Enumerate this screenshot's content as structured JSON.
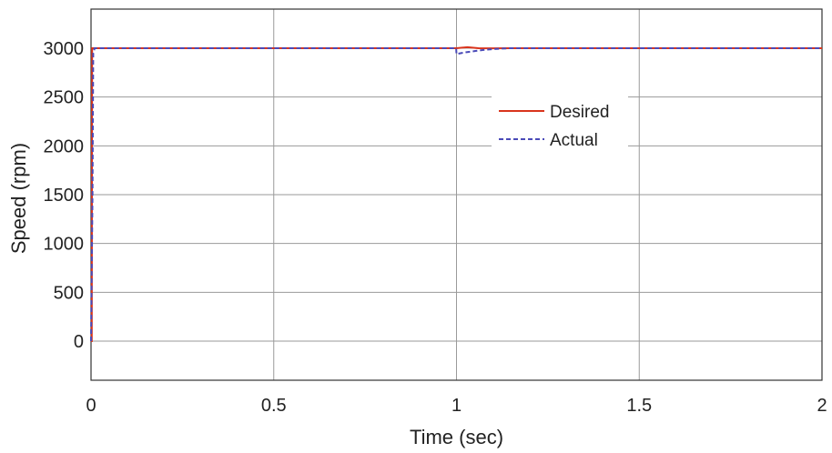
{
  "chart_data": {
    "type": "line",
    "title": "",
    "xlabel": "Time (sec)",
    "ylabel": "Speed (rpm)",
    "xlim": [
      0,
      2
    ],
    "ylim": [
      -400,
      3400
    ],
    "xticks": [
      0,
      0.5,
      1,
      1.5,
      2
    ],
    "yticks": [
      0,
      500,
      1000,
      1500,
      2000,
      2500,
      3000
    ],
    "xtick_labels": [
      "0",
      "0.5",
      "1",
      "1.5",
      "2"
    ],
    "ytick_labels": [
      "0",
      "500",
      "1000",
      "1500",
      "2000",
      "2500",
      "3000"
    ],
    "grid": true,
    "legend_position": "upper-center-right",
    "series": [
      {
        "name": "Desired",
        "color": "#d9341c",
        "line_style": "solid",
        "x": [
          0,
          0.002,
          0.003,
          1.0,
          1.03,
          1.06,
          1.1,
          1.15,
          2.0
        ],
        "y": [
          0,
          0,
          3000,
          3000,
          3010,
          3000,
          2998,
          3000,
          3000
        ]
      },
      {
        "name": "Actual",
        "color": "#4a4ab8",
        "line_style": "dashed",
        "x": [
          0,
          0.004,
          0.006,
          0.01,
          0.5,
          0.999,
          1.0,
          1.02,
          1.05,
          1.08,
          1.12,
          1.15,
          1.2,
          2.0
        ],
        "y": [
          0,
          1500,
          2950,
          3000,
          3000,
          3000,
          2940,
          2955,
          2970,
          2985,
          2995,
          3000,
          3000,
          3000
        ]
      }
    ]
  }
}
